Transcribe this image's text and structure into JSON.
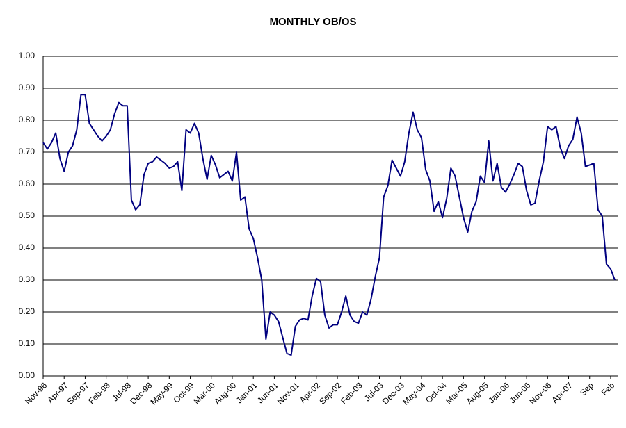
{
  "chart_data": {
    "type": "line",
    "title": "MONTHLY OB/OS",
    "categories": [
      "Nov-96",
      null,
      null,
      null,
      null,
      "Apr-97",
      null,
      null,
      null,
      null,
      "Sep-97",
      null,
      null,
      null,
      null,
      "Feb-98",
      null,
      null,
      null,
      null,
      "Jul-98",
      null,
      null,
      null,
      null,
      "Dec-98",
      null,
      null,
      null,
      null,
      "May-99",
      null,
      null,
      null,
      null,
      "Oct-99",
      null,
      null,
      null,
      null,
      "Mar-00",
      null,
      null,
      null,
      null,
      "Aug-00",
      null,
      null,
      null,
      null,
      "Jan-01",
      null,
      null,
      null,
      null,
      "Jun-01",
      null,
      null,
      null,
      null,
      "Nov-01",
      null,
      null,
      null,
      null,
      "Apr-02",
      null,
      null,
      null,
      null,
      "Sep-02",
      null,
      null,
      null,
      null,
      "Feb-03",
      null,
      null,
      null,
      null,
      "Jul-03",
      null,
      null,
      null,
      null,
      "Dec-03",
      null,
      null,
      null,
      null,
      "May-04",
      null,
      null,
      null,
      null,
      "Oct-04",
      null,
      null,
      null,
      null,
      "Mar-05",
      null,
      null,
      null,
      null,
      "Aug-05",
      null,
      null,
      null,
      null,
      "Jan-06",
      null,
      null,
      null,
      null,
      "Jun-06",
      null,
      null,
      null,
      null,
      "Nov-06",
      null,
      null,
      null,
      null,
      "Apr-07",
      null,
      null,
      null,
      null,
      "Sep",
      null,
      null,
      null,
      null,
      "Feb",
      null
    ],
    "values": [
      0.73,
      0.71,
      0.73,
      0.76,
      0.68,
      0.64,
      0.7,
      0.72,
      0.77,
      0.88,
      0.88,
      0.79,
      0.77,
      0.75,
      0.735,
      0.75,
      0.77,
      0.82,
      0.855,
      0.845,
      0.845,
      0.55,
      0.52,
      0.535,
      0.63,
      0.665,
      0.67,
      0.685,
      0.675,
      0.665,
      0.65,
      0.655,
      0.67,
      0.58,
      0.77,
      0.76,
      0.79,
      0.76,
      0.68,
      0.615,
      0.69,
      0.66,
      0.62,
      0.63,
      0.64,
      0.61,
      0.7,
      0.55,
      0.56,
      0.46,
      0.43,
      0.37,
      0.3,
      0.115,
      0.2,
      0.19,
      0.17,
      0.12,
      0.07,
      0.065,
      0.155,
      0.175,
      0.18,
      0.175,
      0.25,
      0.305,
      0.295,
      0.19,
      0.15,
      0.16,
      0.16,
      0.2,
      0.25,
      0.19,
      0.17,
      0.165,
      0.2,
      0.19,
      0.24,
      0.31,
      0.37,
      0.56,
      0.595,
      0.675,
      0.65,
      0.625,
      0.67,
      0.76,
      0.825,
      0.77,
      0.745,
      0.645,
      0.61,
      0.515,
      0.545,
      0.495,
      0.555,
      0.65,
      0.625,
      0.56,
      0.495,
      0.45,
      0.515,
      0.545,
      0.625,
      0.605,
      0.735,
      0.61,
      0.665,
      0.59,
      0.575,
      0.6,
      0.63,
      0.665,
      0.655,
      0.58,
      0.535,
      0.54,
      0.61,
      0.67,
      0.78,
      0.77,
      0.78,
      0.715,
      0.68,
      0.72,
      0.74,
      0.81,
      0.76,
      0.655,
      0.66,
      0.665,
      0.52,
      0.5,
      0.35,
      0.335,
      0.3
    ],
    "color": "#000080",
    "ylim": [
      0,
      1
    ],
    "yticks": [
      {
        "value": 0,
        "label": "0.00"
      },
      {
        "value": 0.1,
        "label": "0.10"
      },
      {
        "value": 0.2,
        "label": "0.20"
      },
      {
        "value": 0.3,
        "label": "0.30"
      },
      {
        "value": 0.4,
        "label": "0.40"
      },
      {
        "value": 0.5,
        "label": "0.50"
      },
      {
        "value": 0.6,
        "label": "0.60"
      },
      {
        "value": 0.7,
        "label": "0.70"
      },
      {
        "value": 0.8,
        "label": "0.80"
      },
      {
        "value": 0.9,
        "label": "0.90"
      },
      {
        "value": 1,
        "label": "1.00"
      }
    ],
    "grid": true
  }
}
